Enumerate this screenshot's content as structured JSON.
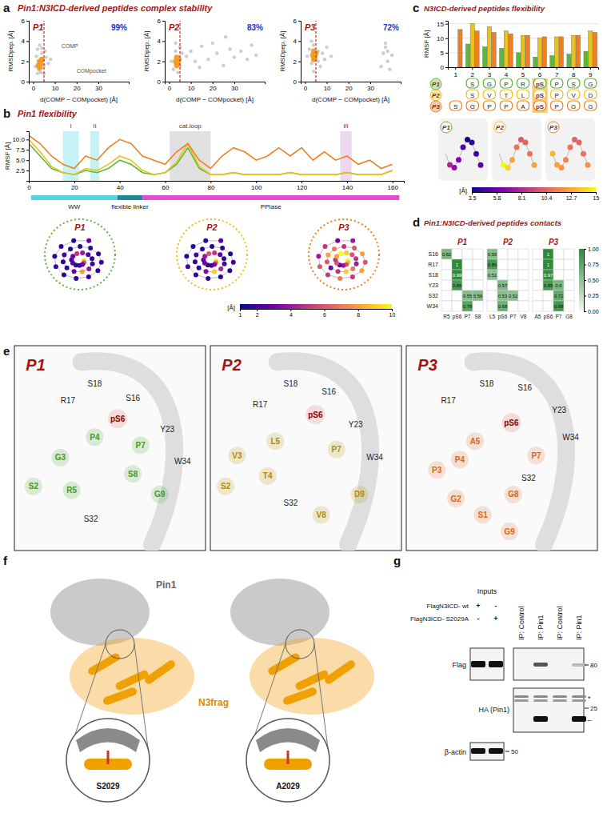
{
  "figure": {
    "letters": [
      "a",
      "b",
      "c",
      "d",
      "e",
      "f",
      "g"
    ],
    "titles": {
      "a": "Pin1:N3ICD-derived peptides complex stability",
      "b": "Pin1 flexibility",
      "c": "N3ICD-derived peptides flexibility",
      "d": "Pin1:N3ICD-derived peptides contacts"
    }
  },
  "chart_data": [
    {
      "type": "scatter",
      "title": "P1",
      "annotation": "99%",
      "inset_labels": [
        "COMP",
        "COMpocket"
      ],
      "x_label": "d(COMP − COMpocket) [Å]",
      "y_label": "RMSDpep. [Å]",
      "xlim": [
        -2,
        44
      ],
      "ylim": [
        0,
        6
      ],
      "xticks": [
        0,
        10,
        20,
        30
      ],
      "yticks": [
        0,
        2,
        4,
        6
      ],
      "reference_x": 5,
      "series": [
        {
          "color": "#c4c4c4",
          "x": [
            1,
            1.5,
            2,
            2,
            2.5,
            3,
            3,
            3.5,
            4,
            4,
            4.5,
            5,
            5.5,
            6,
            7,
            8,
            3,
            2.5,
            4,
            5
          ],
          "values": [
            1.5,
            2.5,
            0.8,
            3.2,
            1.2,
            2,
            3.6,
            0.9,
            1.4,
            2.8,
            2.2,
            1.6,
            3,
            2.4,
            1.8,
            2.2,
            1.1,
            2,
            3.3,
            0.8
          ]
        },
        {
          "color": "#f29b1d",
          "x": [
            2.5,
            3,
            3.5,
            3,
            4
          ],
          "values": [
            1.6,
            2,
            1.8,
            1.4,
            2.2
          ]
        }
      ]
    },
    {
      "type": "scatter",
      "title": "P2",
      "annotation": "83%",
      "x_label": "d(COMP − COMpocket) [Å]",
      "y_label": "RMSDpep. [Å]",
      "xlim": [
        -2,
        44
      ],
      "ylim": [
        0,
        6
      ],
      "xticks": [
        0,
        10,
        20,
        30
      ],
      "yticks": [
        0,
        2,
        4,
        6
      ],
      "reference_x": 5,
      "series": [
        {
          "color": "#c4c4c4",
          "x": [
            1,
            2,
            3,
            4,
            5,
            6,
            3,
            4,
            5,
            8,
            10,
            12,
            15,
            18,
            20,
            22,
            25,
            28,
            30,
            33,
            36,
            38,
            40,
            14,
            26
          ],
          "values": [
            2,
            1.2,
            3,
            2.2,
            1.5,
            2.8,
            3.8,
            0.9,
            3.4,
            2.5,
            3,
            2,
            3.5,
            2.2,
            3.8,
            2.8,
            1.6,
            3.2,
            2.4,
            3,
            2.2,
            3.6,
            2.6,
            1.4,
            4.4
          ]
        },
        {
          "color": "#f29b1d",
          "x": [
            3,
            3.5,
            4,
            4.5,
            3.5
          ],
          "values": [
            2,
            2.4,
            1.8,
            2.2,
            1.6
          ]
        }
      ]
    },
    {
      "type": "scatter",
      "title": "P3",
      "annotation": "72%",
      "x_label": "d(COMP − COMpocket) [Å]",
      "y_label": "RMSDpep. [Å]",
      "xlim": [
        -2,
        44
      ],
      "ylim": [
        0,
        6
      ],
      "xticks": [
        0,
        10,
        20,
        30
      ],
      "yticks": [
        0,
        2,
        4,
        6
      ],
      "reference_x": 5,
      "series": [
        {
          "color": "#c4c4c4",
          "x": [
            1,
            2,
            3,
            4,
            5,
            6,
            7,
            8,
            9,
            10,
            3,
            4,
            5,
            6,
            12,
            35,
            36,
            37,
            38,
            39,
            40,
            37,
            38
          ],
          "values": [
            2.5,
            3.2,
            1.8,
            3.6,
            2.2,
            3,
            1.5,
            2.8,
            2.2,
            3.4,
            4,
            1,
            2.6,
            2,
            2.5,
            1.5,
            2.8,
            3.4,
            2,
            1.2,
            2.6,
            3.8,
            3
          ]
        },
        {
          "color": "#f29b1d",
          "x": [
            3.5,
            4,
            4.5,
            5,
            4
          ],
          "values": [
            2.6,
            3,
            2.4,
            2.8,
            2.2
          ]
        }
      ]
    },
    {
      "type": "line",
      "y_label": "RMSF [Å]",
      "xlim": [
        0,
        165
      ],
      "ylim": [
        0,
        12
      ],
      "xticks": [
        0,
        20,
        40,
        60,
        80,
        100,
        120,
        140,
        160
      ],
      "yticks": [
        2.5,
        {
          "value": 5,
          "label": "5.0"
        },
        7.5,
        {
          "value": 10,
          "label": "10.0"
        }
      ],
      "x": [
        0,
        5,
        10,
        15,
        20,
        25,
        30,
        35,
        40,
        45,
        50,
        55,
        60,
        65,
        70,
        75,
        80,
        85,
        90,
        95,
        100,
        105,
        110,
        115,
        120,
        125,
        130,
        135,
        140,
        145,
        150,
        155,
        160
      ],
      "series": [
        {
          "name": "P1",
          "color": "#5cb83a",
          "values": [
            9,
            6,
            3,
            2,
            1.5,
            2.5,
            2,
            3,
            5,
            4,
            2,
            1.5,
            2,
            4,
            8,
            3,
            1.5,
            1.5,
            2,
            1.5,
            1.5,
            1.5,
            1.5,
            2,
            1.5,
            1.5,
            1.5,
            1.5,
            2,
            1.5,
            1.5,
            1.5,
            2.5
          ]
        },
        {
          "name": "P2",
          "color": "#e8c21e",
          "values": [
            10,
            7,
            3.5,
            2,
            1.5,
            3,
            2.5,
            4,
            6,
            5,
            2.5,
            1.5,
            2,
            4.5,
            9,
            3.5,
            1.5,
            1.5,
            2,
            1.5,
            1.5,
            1.5,
            1.5,
            2,
            1.5,
            1.5,
            1.5,
            1.5,
            2,
            1.5,
            1.5,
            1.5,
            2.5
          ]
        },
        {
          "name": "P3",
          "color": "#f07f22",
          "values": [
            11,
            9,
            6,
            4,
            3,
            6,
            5,
            8,
            10,
            9,
            6,
            5,
            4,
            7,
            9,
            5,
            3,
            6,
            8,
            7,
            5,
            6,
            8,
            6,
            8,
            5,
            7,
            5,
            6,
            4,
            5,
            3,
            4
          ]
        }
      ],
      "regions": [
        {
          "label": "I",
          "start": 15,
          "end": 22,
          "color": "#7fe3e8"
        },
        {
          "label": "II",
          "start": 27,
          "end": 31,
          "color": "#7fe3e8"
        },
        {
          "label": "cat.loop",
          "start": 62,
          "end": 80,
          "color": "#bdbdbd"
        },
        {
          "label": "III",
          "start": 137,
          "end": 142,
          "color": "#d9a6e0"
        }
      ],
      "domains": [
        {
          "label": "WW",
          "start": 1,
          "end": 39,
          "color": "#4fd6e0"
        },
        {
          "label": "flexible linker",
          "start": 39,
          "end": 50,
          "color": "#1d8a8f"
        },
        {
          "label": "PPIase",
          "start": 50,
          "end": 163,
          "color": "#e04fd0"
        }
      ],
      "colorbar": {
        "lim": [
          1,
          10
        ],
        "ticks": [
          1,
          2,
          4,
          6,
          8,
          10
        ],
        "label": "[Å]"
      }
    },
    {
      "type": "bar",
      "y_label": "RMSF [Å]",
      "categories": [
        "1",
        "2",
        "3",
        "4",
        "5",
        "6",
        "7",
        "8",
        "9"
      ],
      "ylim": [
        0,
        16
      ],
      "yticks": [
        0,
        5,
        10,
        15
      ],
      "grid": true,
      "series": [
        {
          "name": "P1",
          "color": "#5cb83a",
          "values": [
            null,
            8,
            7,
            6.5,
            5,
            3.5,
            4,
            4.5,
            5.5
          ],
          "sequence": [
            null,
            "S",
            "G",
            "P",
            "R",
            "pS",
            "P",
            "S",
            "G"
          ]
        },
        {
          "name": "P2",
          "color": "#e8c21e",
          "values": [
            null,
            15,
            14,
            12.5,
            11,
            10,
            10.5,
            11,
            12.5
          ],
          "sequence": [
            null,
            "S",
            "V",
            "T",
            "L",
            "pS",
            "P",
            "V",
            "D"
          ]
        },
        {
          "name": "P3",
          "color": "#f07f22",
          "values": [
            13,
            12.5,
            12,
            11.5,
            11,
            10.5,
            10.5,
            11,
            12
          ],
          "sequence": [
            "S",
            "G",
            "P",
            "P",
            "A",
            "pS",
            "P",
            "G",
            "G"
          ]
        }
      ],
      "colorbar": {
        "lim": [
          3.5,
          15
        ],
        "ticks": [
          3.5,
          5.8,
          8.1,
          10.4,
          12.7,
          15
        ],
        "label": "[Å]"
      }
    },
    {
      "type": "heatmap",
      "data_labels": true,
      "rows": [
        "S16",
        "R17",
        "S18",
        "Y23",
        "S32",
        "W34"
      ],
      "panels": [
        {
          "title": "P1",
          "columns": [
            "R5",
            "pS6",
            "P7",
            "S8"
          ],
          "cells": [
            [
              0.62,
              null,
              null,
              null
            ],
            [
              null,
              1,
              null,
              null
            ],
            [
              null,
              0.99,
              null,
              null
            ],
            [
              null,
              0.86,
              null,
              null
            ],
            [
              null,
              null,
              0.55,
              0.56
            ],
            [
              null,
              null,
              0.78,
              null
            ]
          ]
        },
        {
          "title": "P2",
          "columns": [
            "L5",
            "pS6",
            "P7",
            "V8"
          ],
          "cells": [
            [
              0.56,
              null,
              null,
              null
            ],
            [
              0.86,
              null,
              null,
              null
            ],
            [
              0.51,
              null,
              null,
              null
            ],
            [
              null,
              0.57,
              null,
              null
            ],
            [
              null,
              0.53,
              0.52,
              null
            ],
            [
              null,
              0.68,
              null,
              null
            ]
          ]
        },
        {
          "title": "P3",
          "columns": [
            "A5",
            "pS6",
            "P7",
            "G8"
          ],
          "cells": [
            [
              null,
              1,
              null,
              null
            ],
            [
              null,
              1,
              null,
              null
            ],
            [
              null,
              0.97,
              null,
              null
            ],
            [
              null,
              0.85,
              0.6,
              null
            ],
            [
              null,
              null,
              0.72,
              null
            ],
            [
              null,
              null,
              0.88,
              null
            ]
          ]
        }
      ],
      "colorbar": {
        "lim": [
          0,
          1
        ],
        "ticks": [
          {
            "value": 0,
            "label": "0.00"
          },
          0.25,
          {
            "value": 0.5,
            "label": "0.50"
          },
          0.75,
          {
            "value": 1,
            "label": "1.00"
          }
        ]
      }
    }
  ],
  "peptide_views": [
    {
      "title": "P1",
      "color": "#3f9a2a",
      "pin1_residues": [
        "R17",
        "S18",
        "S16",
        "Y23",
        "W34",
        "S32"
      ],
      "peptide_residues": [
        "P4",
        "G3",
        "P7",
        "S2",
        "S8",
        "R5",
        "G9"
      ],
      "phospho": "pS6"
    },
    {
      "title": "P2",
      "color": "#b08d00",
      "pin1_residues": [
        "S18",
        "S16",
        "R17",
        "Y23",
        "W34",
        "S32"
      ],
      "peptide_residues": [
        "L5",
        "V3",
        "P7",
        "S2",
        "T4",
        "V8",
        "D9"
      ],
      "phospho": "pS6"
    },
    {
      "title": "P3",
      "color": "#d9661a",
      "pin1_residues": [
        "S18",
        "S16",
        "R17",
        "Y23",
        "W34",
        "S32"
      ],
      "peptide_residues": [
        "A5",
        "P4",
        "P7",
        "P3",
        "G8",
        "G2",
        "S1",
        "G9"
      ],
      "phospho": "pS6"
    }
  ],
  "complex": {
    "protein": "Pin1",
    "fragment": "N3frag",
    "sites": [
      "S2029",
      "A2029"
    ]
  },
  "blot": {
    "inputs": "Inputs",
    "constructs": [
      {
        "label": "FlagN3ICD- wt",
        "signs": [
          "+",
          "-"
        ]
      },
      {
        "label": "FlagN3ICD- S2029A",
        "signs": [
          "-",
          "+"
        ]
      }
    ],
    "lanes": [
      "IP: Control",
      "IP: Pin1",
      "IP: Control",
      "IP: Pin1"
    ],
    "rows": [
      {
        "label": "Flag",
        "marker": 80
      },
      {
        "label": "HA (Pin1)",
        "marker": 25,
        "notes": [
          "*",
          "←"
        ]
      },
      {
        "label": "β-actin",
        "marker": 50
      }
    ]
  }
}
